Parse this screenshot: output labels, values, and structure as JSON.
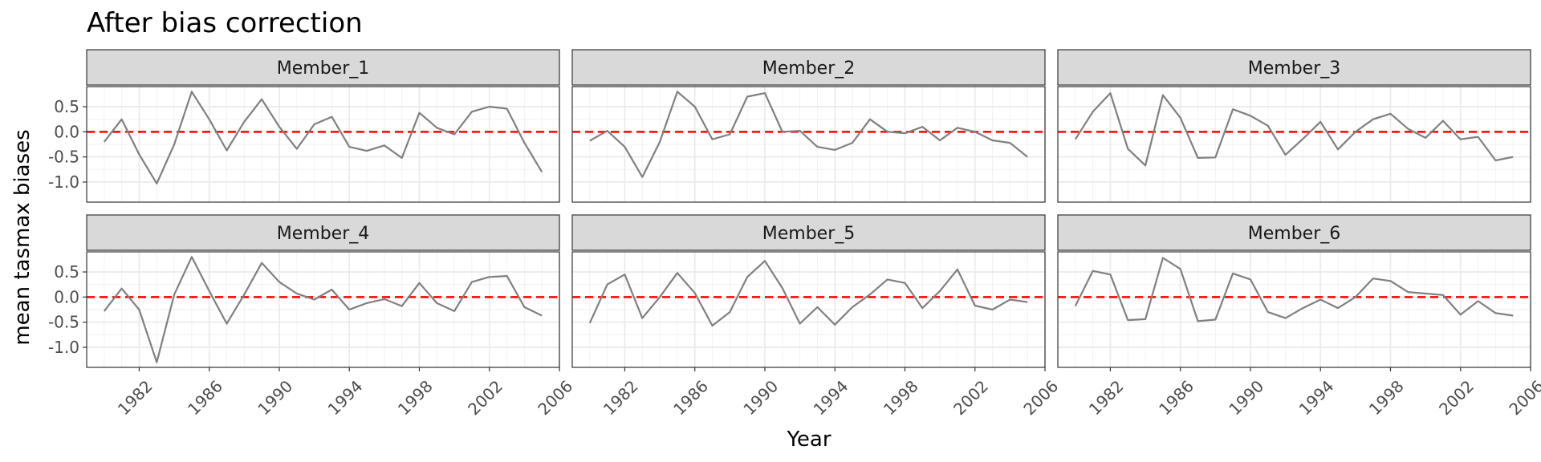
{
  "chart_data": {
    "type": "line",
    "title": "After bias correction",
    "xlabel": "Year",
    "ylabel": "mean tasmax biases",
    "xlim": [
      1979,
      2006
    ],
    "ylim": [
      -1.4,
      0.9
    ],
    "x_ticks": [
      "1982",
      "1986",
      "1990",
      "1994",
      "1998",
      "2002",
      "2006"
    ],
    "y_ticks": [
      "0.5",
      "0.0",
      "-0.5",
      "-1.0"
    ],
    "reference_line": {
      "y": 0,
      "style": "dashed",
      "color": "#ff0000"
    },
    "line_color": "#808080",
    "strip_fill": "#d9d9d9",
    "grid": true,
    "x": [
      1980,
      1981,
      1982,
      1983,
      1984,
      1985,
      1986,
      1987,
      1988,
      1989,
      1990,
      1991,
      1992,
      1993,
      1994,
      1995,
      1996,
      1997,
      1998,
      1999,
      2000,
      2001,
      2002,
      2003,
      2004,
      2005
    ],
    "panels": [
      {
        "name": "Member_1",
        "values": [
          -0.2,
          0.25,
          -0.45,
          -1.03,
          -0.25,
          0.8,
          0.25,
          -0.37,
          0.2,
          0.65,
          0.1,
          -0.34,
          0.15,
          0.3,
          -0.3,
          -0.38,
          -0.27,
          -0.52,
          0.38,
          0.08,
          -0.05,
          0.4,
          0.5,
          0.46,
          -0.22,
          -0.8
        ]
      },
      {
        "name": "Member_2",
        "values": [
          -0.18,
          0.02,
          -0.3,
          -0.9,
          -0.2,
          0.8,
          0.5,
          -0.15,
          -0.05,
          0.7,
          0.77,
          0.0,
          0.02,
          -0.3,
          -0.36,
          -0.22,
          0.25,
          0.0,
          -0.03,
          0.1,
          -0.17,
          0.08,
          0.0,
          -0.17,
          -0.22,
          -0.5
        ]
      },
      {
        "name": "Member_3",
        "values": [
          -0.15,
          0.4,
          0.77,
          -0.34,
          -0.67,
          0.73,
          0.28,
          -0.52,
          -0.51,
          0.45,
          0.32,
          0.12,
          -0.46,
          -0.14,
          0.2,
          -0.35,
          0.0,
          0.25,
          0.36,
          0.06,
          -0.12,
          0.22,
          -0.15,
          -0.1,
          -0.57,
          -0.5
        ]
      },
      {
        "name": "Member_4",
        "values": [
          -0.28,
          0.17,
          -0.25,
          -1.3,
          0.05,
          0.8,
          0.12,
          -0.53,
          0.05,
          0.68,
          0.3,
          0.07,
          -0.05,
          0.15,
          -0.25,
          -0.12,
          -0.04,
          -0.18,
          0.28,
          -0.12,
          -0.28,
          0.3,
          0.4,
          0.42,
          -0.2,
          -0.37
        ]
      },
      {
        "name": "Member_5",
        "values": [
          -0.52,
          0.25,
          0.45,
          -0.42,
          0.0,
          0.48,
          0.08,
          -0.57,
          -0.3,
          0.4,
          0.72,
          0.18,
          -0.53,
          -0.2,
          -0.55,
          -0.2,
          0.05,
          0.35,
          0.28,
          -0.22,
          0.12,
          0.55,
          -0.17,
          -0.25,
          -0.05,
          -0.1
        ]
      },
      {
        "name": "Member_6",
        "values": [
          -0.18,
          0.52,
          0.45,
          -0.46,
          -0.44,
          0.78,
          0.56,
          -0.48,
          -0.45,
          0.47,
          0.35,
          -0.3,
          -0.42,
          -0.22,
          -0.05,
          -0.22,
          0.0,
          0.37,
          0.32,
          0.1,
          0.07,
          0.04,
          -0.35,
          -0.08,
          -0.32,
          -0.37
        ]
      }
    ]
  }
}
